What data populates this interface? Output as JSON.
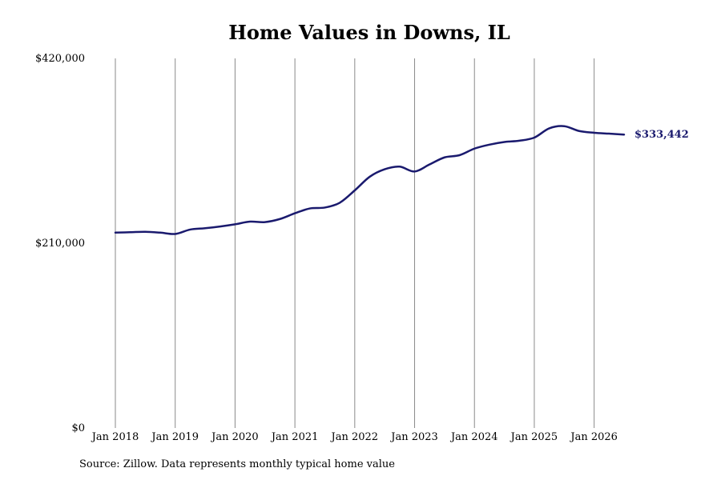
{
  "chart_data": {
    "type": "line",
    "title": "Home Values in Downs, IL",
    "xlabel": "",
    "ylabel": "",
    "source_note": "Source: Zillow. Data represents monthly typical home value",
    "x_ticks": [
      "Jan 2018",
      "Jan 2019",
      "Jan 2020",
      "Jan 2021",
      "Jan 2022",
      "Jan 2023",
      "Jan 2024",
      "Jan 2025",
      "Jan 2026"
    ],
    "y_ticks": [
      "$0",
      "$210,000",
      "$420,000"
    ],
    "y_tick_values": [
      0,
      210000,
      420000
    ],
    "ylim": [
      0,
      420000
    ],
    "xlim": [
      "2018-01",
      "2026-07"
    ],
    "grid": "vertical lines at each x tick",
    "line_color": "#1a1a6e",
    "series": [
      {
        "end_label": "$333,442",
        "points": [
          [
            "2018-01",
            222000
          ],
          [
            "2018-04",
            222500
          ],
          [
            "2018-07",
            223000
          ],
          [
            "2018-10",
            222000
          ],
          [
            "2019-01",
            220500
          ],
          [
            "2019-04",
            225500
          ],
          [
            "2019-07",
            227000
          ],
          [
            "2019-10",
            229000
          ],
          [
            "2020-01",
            231500
          ],
          [
            "2020-04",
            234500
          ],
          [
            "2020-07",
            234000
          ],
          [
            "2020-10",
            237500
          ],
          [
            "2021-01",
            244000
          ],
          [
            "2021-04",
            249500
          ],
          [
            "2021-07",
            250500
          ],
          [
            "2021-10",
            256000
          ],
          [
            "2022-01",
            270000
          ],
          [
            "2022-04",
            285500
          ],
          [
            "2022-07",
            294000
          ],
          [
            "2022-10",
            297000
          ],
          [
            "2023-01",
            291500
          ],
          [
            "2023-04",
            299500
          ],
          [
            "2023-07",
            307500
          ],
          [
            "2023-10",
            310000
          ],
          [
            "2024-01",
            317500
          ],
          [
            "2024-04",
            322000
          ],
          [
            "2024-07",
            325000
          ],
          [
            "2024-10",
            326500
          ],
          [
            "2025-01",
            330000
          ],
          [
            "2025-04",
            340500
          ],
          [
            "2025-07",
            343000
          ],
          [
            "2025-10",
            337500
          ],
          [
            "2026-01",
            335500
          ],
          [
            "2026-04",
            334500
          ],
          [
            "2026-07",
            333442
          ]
        ]
      }
    ]
  }
}
